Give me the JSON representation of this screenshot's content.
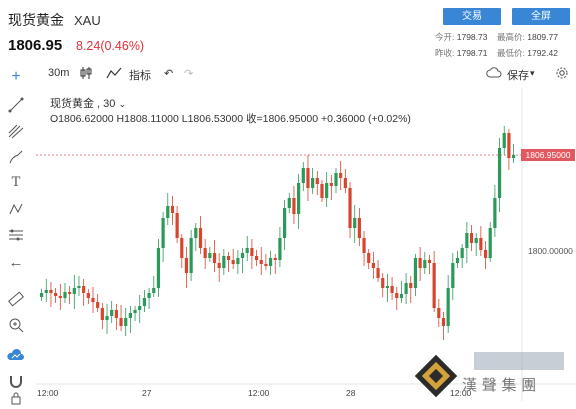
{
  "header": {
    "name": "现货黄金",
    "symbol": "XAU",
    "price": "1806.95",
    "change": "8.24(0.46%)",
    "buttons": {
      "trade": "交易",
      "fullscreen": "全屏"
    },
    "stats": {
      "open_label": "今开:",
      "open": "1798.73",
      "high_label": "最高价:",
      "high": "1809.77",
      "prev_label": "昨收:",
      "prev": "1798.71",
      "low_label": "最低价:",
      "low": "1792.42"
    }
  },
  "toolbar": {
    "interval": "30m",
    "indicators": "指标",
    "save": "保存"
  },
  "chart": {
    "legend_name": "现货黄金 , 30",
    "ohlc": "O1806.62000  H1808.11000  L1806.53000  收=1806.95000  +0.36000 (+0.02%)",
    "last_price_tag": "1806.95000",
    "y_label": "1800.00000",
    "x_labels": [
      "12:00",
      "27",
      "12:00",
      "28",
      "12:00"
    ],
    "watermark_text": "漢 聲 集 團",
    "colors": {
      "up": "#2a9a5a",
      "down": "#d8452f",
      "price_line": "#e25860",
      "accent": "#3a86d6"
    }
  },
  "chart_data": {
    "type": "candlestick",
    "title": "现货黄金 , 30",
    "current_price": 1806.95,
    "ohlc_last": {
      "open": 1806.62,
      "high": 1808.11,
      "low": 1806.53,
      "close": 1806.95
    },
    "y_ticks": [
      1800.0,
      1806.95
    ],
    "x_ticks": [
      "12:00",
      "27",
      "12:00",
      "28",
      "12:00"
    ]
  }
}
